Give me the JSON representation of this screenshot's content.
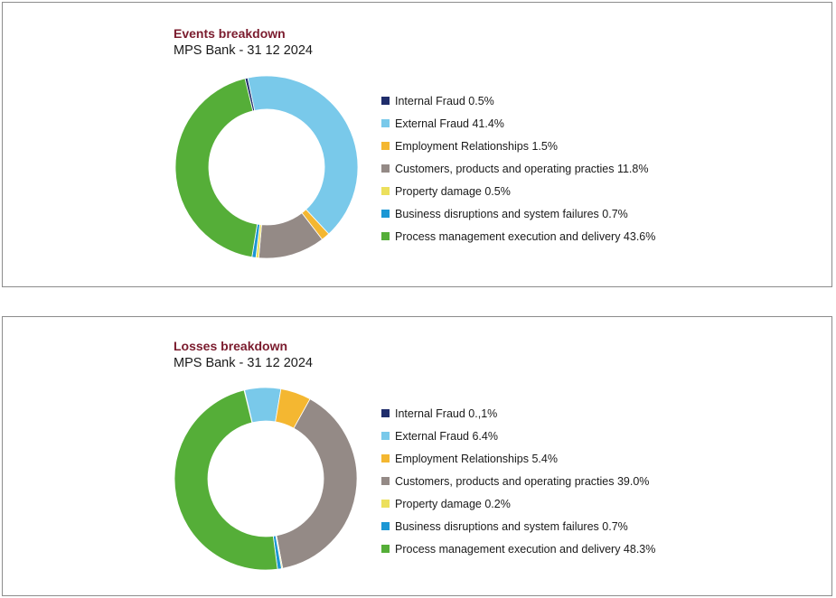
{
  "chart_data": [
    {
      "type": "pie",
      "title": "Events breakdown",
      "subtitle": "MPS Bank - 31 12 2024",
      "donut": true,
      "slices": [
        {
          "label": "Internal Fraud 0.5%",
          "value": 0.5,
          "color": "#1f2d6b"
        },
        {
          "label": "External Fraud 41.4%",
          "value": 41.4,
          "color": "#79c9ea"
        },
        {
          "label": "Employment Relationships 1.5%",
          "value": 1.5,
          "color": "#f4b731"
        },
        {
          "label": "Customers, products and operating practies 11.8%",
          "value": 11.8,
          "color": "#948a86"
        },
        {
          "label": "Property damage 0.5%",
          "value": 0.5,
          "color": "#ece05c"
        },
        {
          "label": "Business disruptions and system failures 0.7%",
          "value": 0.7,
          "color": "#1c97d4"
        },
        {
          "label": "Process management execution and delivery 43.6%",
          "value": 43.6,
          "color": "#55ae38"
        }
      ],
      "legend_position": "right"
    },
    {
      "type": "pie",
      "title": "Losses breakdown",
      "subtitle": "MPS Bank - 31 12 2024",
      "donut": true,
      "slices": [
        {
          "label": "Internal Fraud 0.,1%",
          "value": 0.1,
          "color": "#1f2d6b"
        },
        {
          "label": "External Fraud 6.4%",
          "value": 6.4,
          "color": "#79c9ea"
        },
        {
          "label": "Employment Relationships 5.4%",
          "value": 5.4,
          "color": "#f4b731"
        },
        {
          "label": "Customers, products and operating practies 39.0%",
          "value": 39.0,
          "color": "#948a86"
        },
        {
          "label": "Property damage 0.2%",
          "value": 0.2,
          "color": "#ece05c"
        },
        {
          "label": "Business disruptions and system failures 0.7%",
          "value": 0.7,
          "color": "#1c97d4"
        },
        {
          "label": "Process management execution and delivery 48.3%",
          "value": 48.3,
          "color": "#55ae38"
        }
      ],
      "legend_position": "right"
    }
  ]
}
